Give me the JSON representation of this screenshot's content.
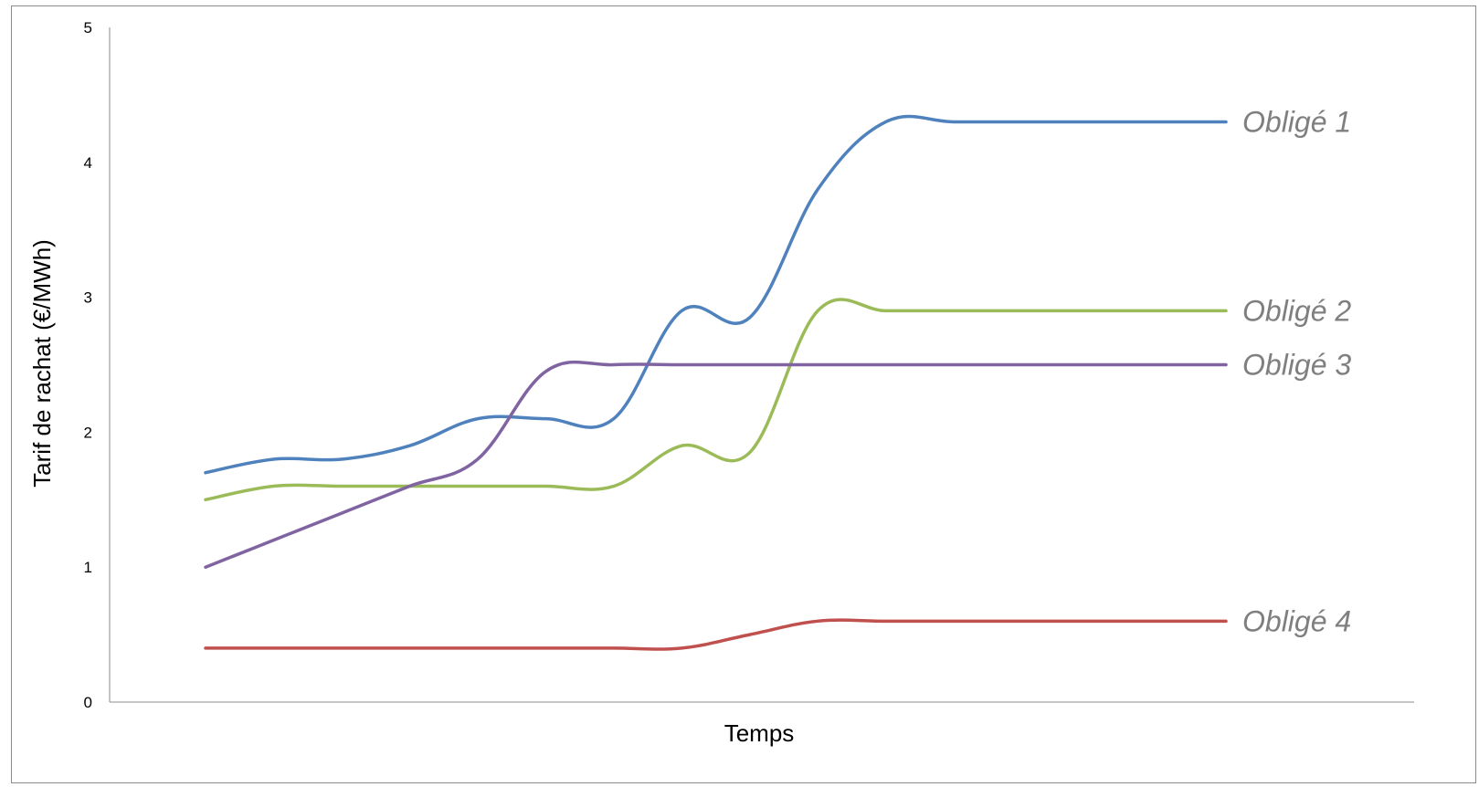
{
  "chart_data": {
    "type": "line",
    "title": "",
    "xlabel": "Temps",
    "ylabel": "Tarif de rachat (€/MWh)",
    "ylim": [
      0,
      5
    ],
    "yticks": [
      0,
      1,
      2,
      3,
      4,
      5
    ],
    "grid": false,
    "legend": "inline labels at line ends",
    "x": [
      1,
      2,
      3,
      4,
      5,
      6,
      7,
      8,
      9,
      10,
      11,
      12,
      13,
      14,
      15,
      16
    ],
    "series": [
      {
        "name": "Obligé 1",
        "color": "#4f81bd",
        "values": [
          1.7,
          1.8,
          1.8,
          1.9,
          2.1,
          2.1,
          2.1,
          2.9,
          2.85,
          3.8,
          4.3,
          4.3,
          4.3,
          4.3,
          4.3,
          4.3
        ]
      },
      {
        "name": "Obligé 2",
        "color": "#9bbb59",
        "values": [
          1.5,
          1.6,
          1.6,
          1.6,
          1.6,
          1.6,
          1.6,
          1.9,
          1.85,
          2.9,
          2.9,
          2.9,
          2.9,
          2.9,
          2.9,
          2.9
        ]
      },
      {
        "name": "Obligé 3",
        "color": "#8064a2",
        "values": [
          1.0,
          1.2,
          1.4,
          1.6,
          1.8,
          2.45,
          2.5,
          2.5,
          2.5,
          2.5,
          2.5,
          2.5,
          2.5,
          2.5,
          2.5,
          2.5
        ]
      },
      {
        "name": "Obligé 4",
        "color": "#c0504d",
        "values": [
          0.4,
          0.4,
          0.4,
          0.4,
          0.4,
          0.4,
          0.4,
          0.4,
          0.5,
          0.6,
          0.6,
          0.6,
          0.6,
          0.6,
          0.6,
          0.6
        ]
      }
    ]
  }
}
